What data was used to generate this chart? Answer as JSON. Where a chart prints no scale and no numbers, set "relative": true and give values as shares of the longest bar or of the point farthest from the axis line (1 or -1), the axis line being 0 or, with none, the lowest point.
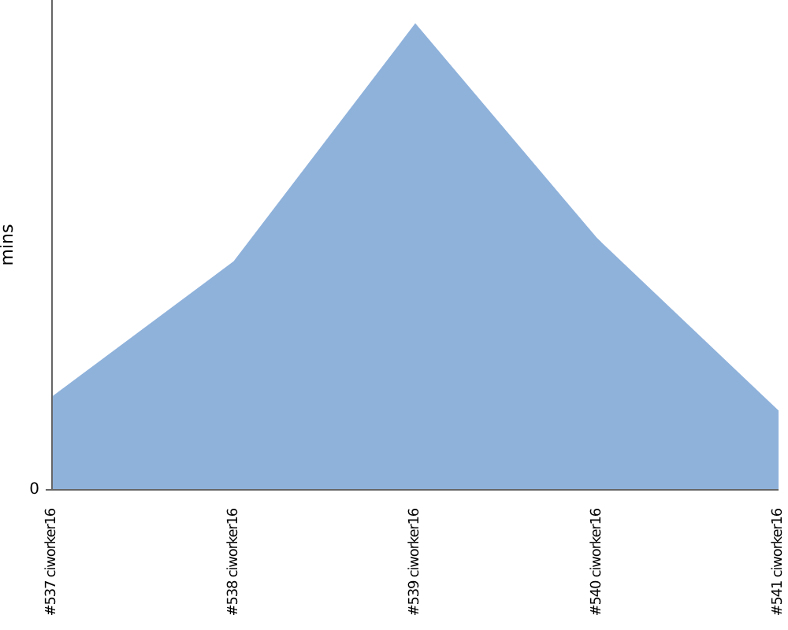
{
  "chart_data": {
    "type": "area",
    "ylabel": "mins",
    "relative": true,
    "annotations": [
      "0"
    ],
    "categories": [
      "#537 ciworker16",
      "#538 ciworker16",
      "#539 ciworker16",
      "#540 ciworker16",
      "#541 ciworker16"
    ],
    "series": [
      {
        "color": "#8fb2db",
        "values": [
          0.2,
          0.49,
          1,
          0.54,
          0.17
        ]
      }
    ],
    "grid": false,
    "legend": false
  }
}
